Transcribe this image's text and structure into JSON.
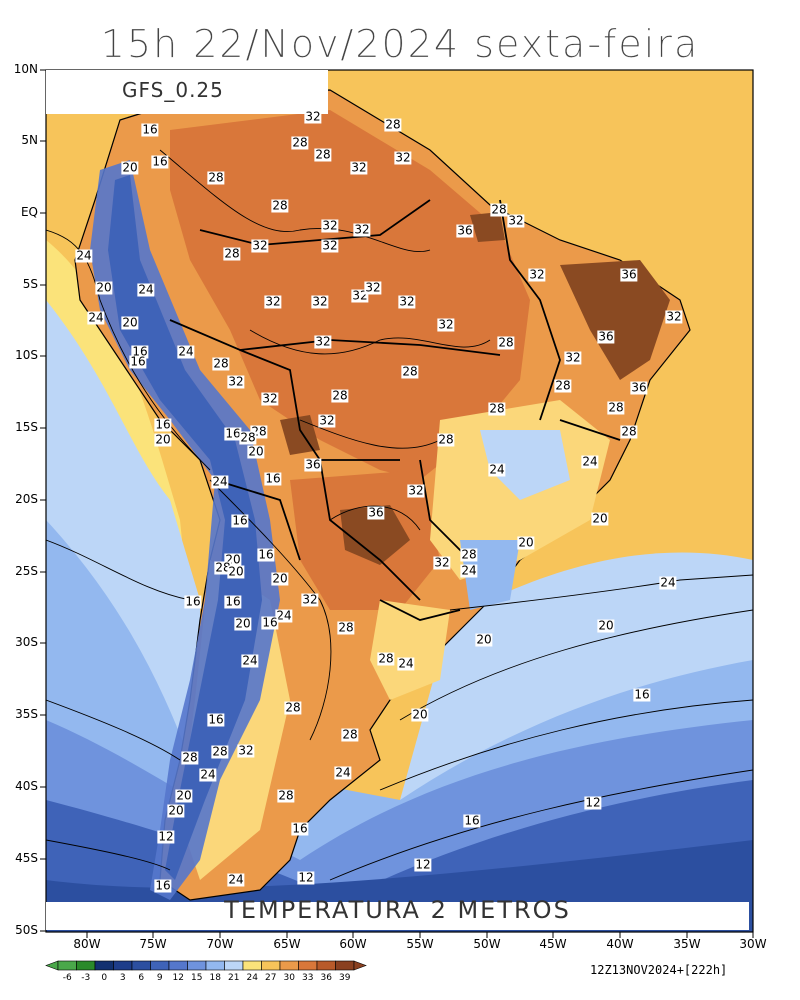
{
  "header": {
    "title": "15h 22/Nov/2024 sexta-feira"
  },
  "map": {
    "model": "GFS_0.25",
    "variable": "TEMPERATURA 2 METROS",
    "run": "12Z13NOV2024+[222h]",
    "lat_labels": [
      "10N",
      "5N",
      "EQ",
      "5S",
      "10S",
      "15S",
      "20S",
      "25S",
      "30S",
      "35S",
      "40S",
      "45S",
      "50S"
    ],
    "lon_labels": [
      "80W",
      "75W",
      "70W",
      "65W",
      "60W",
      "55W",
      "50W",
      "45W",
      "40W",
      "35W",
      "30W"
    ],
    "contour_labels": [
      "12",
      "16",
      "20",
      "24",
      "28",
      "32",
      "36"
    ],
    "colorbar": {
      "ticks": [
        "-6",
        "-3",
        "0",
        "3",
        "6",
        "9",
        "12",
        "15",
        "18",
        "21",
        "24",
        "27",
        "30",
        "33",
        "36",
        "39"
      ],
      "colors": [
        "#4aa84a",
        "#2a8a2a",
        "#123070",
        "#1e3d8a",
        "#2c4fa0",
        "#3f63b8",
        "#5577cc",
        "#6f93dd",
        "#93b8ef",
        "#bcd6f7",
        "#fbe37a",
        "#f7c45a",
        "#eb9a4a",
        "#d9773a",
        "#b85a2a",
        "#8a4020"
      ]
    },
    "region_colors": {
      "ocean_warm": "#f7c45a",
      "ocean_cool": "#bcd6f7",
      "ocean_cold": "#6f93dd",
      "ocean_colder": "#3f63b8",
      "land_hot": "#d9773a",
      "land_very_hot": "#8a4a22",
      "land_warm": "#eb9a4a",
      "land_mild": "#fbd77a",
      "andes": "#5577cc"
    }
  }
}
